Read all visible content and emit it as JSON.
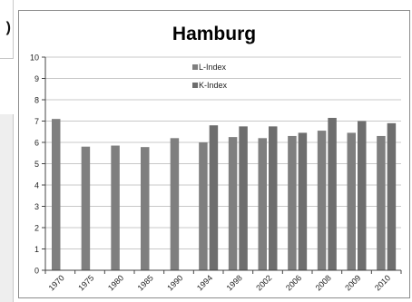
{
  "left_fragment": {
    "text": ")"
  },
  "chart_data": {
    "type": "bar",
    "title": "Hamburg",
    "xlabel": "",
    "ylabel": "",
    "ylim": [
      0,
      10
    ],
    "yticks": [
      "0",
      "1",
      "2",
      "3",
      "4",
      "5",
      "6",
      "7",
      "8",
      "9",
      "10"
    ],
    "categories": [
      "1970",
      "1975",
      "1980",
      "1985",
      "1990",
      "1994",
      "1998",
      "2002",
      "2006",
      "2008",
      "2009",
      "2010"
    ],
    "series": [
      {
        "name": "L-Index",
        "color": "#7f7f7f",
        "values": [
          7.1,
          5.8,
          5.85,
          5.78,
          6.2,
          6.0,
          6.25,
          6.2,
          6.3,
          6.55,
          6.45,
          6.3
        ]
      },
      {
        "name": "K-Index",
        "color": "#6e6e6e",
        "values": [
          null,
          null,
          null,
          null,
          null,
          6.8,
          6.75,
          6.75,
          6.45,
          7.15,
          7.0,
          6.9
        ]
      }
    ],
    "grid": true,
    "legend_position": "top-center"
  }
}
